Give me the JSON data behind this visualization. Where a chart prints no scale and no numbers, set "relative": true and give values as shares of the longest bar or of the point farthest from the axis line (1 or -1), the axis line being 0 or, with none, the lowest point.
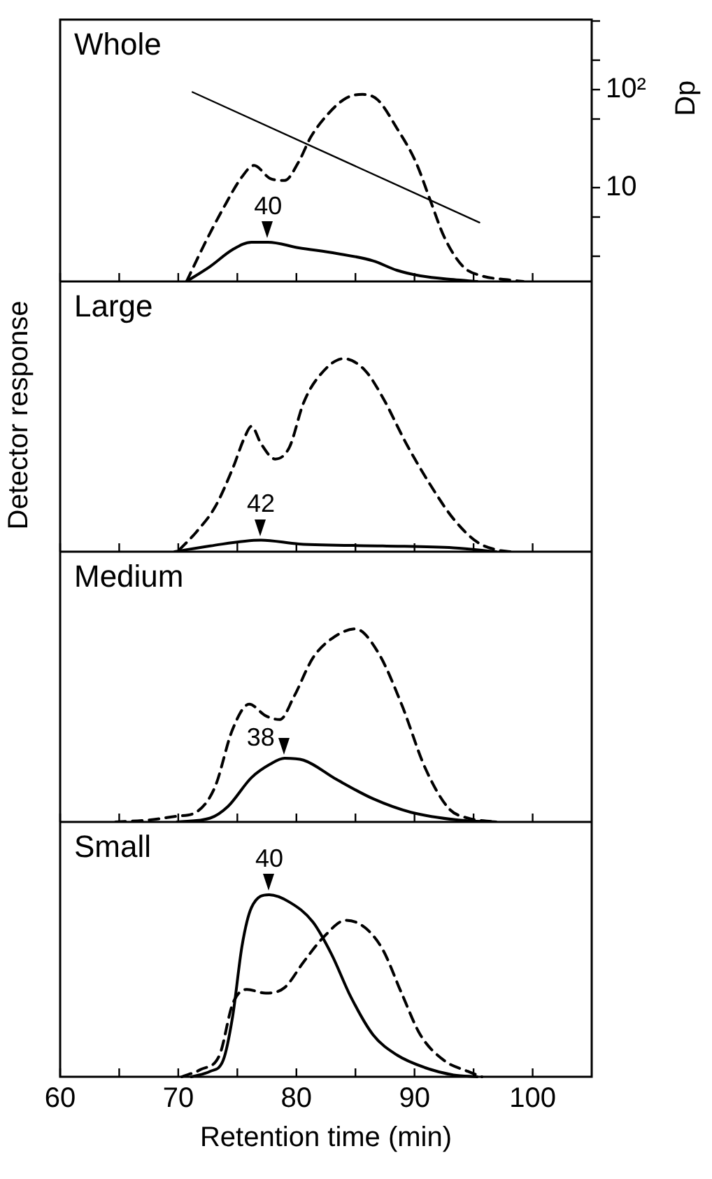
{
  "chart_data": [
    {
      "type": "line",
      "title": "Whole",
      "relative": true,
      "tick_labels": false,
      "xlim": [
        60,
        105
      ],
      "xticks": [
        60,
        {
          "value": 65,
          "label": null
        },
        70,
        {
          "value": 75,
          "label": null
        },
        80,
        {
          "value": 85,
          "label": null
        },
        90,
        {
          "value": 95,
          "label": null
        },
        100
      ],
      "annotations": [
        {
          "text": "40",
          "x": 77.6,
          "y": 0.21
        }
      ],
      "series": [
        {
          "color": "#000000",
          "line_style": "dashed",
          "x": [
            70.7,
            72.3,
            73.8,
            75.4,
            76.4,
            77.8,
            79.0,
            80.2,
            81.2,
            82.6,
            84.2,
            85.6,
            86.9,
            88.5,
            90.1,
            91.3,
            92.5,
            94.1,
            95.7,
            97.7,
            99.2
          ],
          "values": [
            0,
            0.21,
            0.39,
            0.56,
            0.62,
            0.55,
            0.54,
            0.64,
            0.77,
            0.89,
            0.98,
            1,
            0.97,
            0.82,
            0.64,
            0.44,
            0.24,
            0.08,
            0.03,
            0.01,
            0
          ]
        },
        {
          "color": "#000000",
          "line_style": "solid",
          "x": [
            70.7,
            72.7,
            74.6,
            76.2,
            77.6,
            80.2,
            83.4,
            86.5,
            88.5,
            90.5,
            93.3,
            95.3
          ],
          "values": [
            0,
            0.08,
            0.17,
            0.21,
            0.21,
            0.18,
            0.15,
            0.11,
            0.06,
            0.03,
            0.01,
            0
          ]
        }
      ]
    },
    {
      "type": "line",
      "ylabel": "Dp",
      "log": true,
      "tick_labels": "y",
      "xlim": [
        60,
        105
      ],
      "ylim": [
        1.1,
        520
      ],
      "yticks": [
        {
          "value": 2,
          "label": null
        },
        {
          "value": 5,
          "label": null
        },
        10,
        {
          "value": 50,
          "label": null
        },
        {
          "value": 100,
          "label": "10²"
        },
        {
          "value": 200,
          "label": null
        },
        {
          "value": 500,
          "label": null
        }
      ],
      "series": [
        {
          "color": "#000000",
          "line_style": "solid",
          "x": [
            71.2,
            95.5
          ],
          "values": [
            94.6,
            4.4
          ]
        }
      ]
    },
    {
      "type": "line",
      "title": "Large",
      "ylabel": "Detector response",
      "relative": true,
      "tick_labels": false,
      "xlim": [
        60,
        105
      ],
      "xticks": [
        60,
        {
          "value": 65,
          "label": null
        },
        70,
        {
          "value": 75,
          "label": null
        },
        80,
        {
          "value": 85,
          "label": null
        },
        90,
        {
          "value": 95,
          "label": null
        },
        100
      ],
      "annotations": [
        {
          "text": "42",
          "x": 77.0,
          "y": 0.06
        }
      ],
      "series": [
        {
          "color": "#000000",
          "line_style": "dashed",
          "x": [
            70.1,
            71.5,
            73.1,
            74.6,
            75.6,
            76.2,
            77.0,
            78.2,
            79.4,
            80.6,
            81.8,
            84.0,
            85.8,
            87.3,
            89.3,
            91.3,
            93.3,
            95.3,
            96.9,
            98.1
          ],
          "values": [
            0.01,
            0.1,
            0.23,
            0.43,
            0.59,
            0.65,
            0.56,
            0.48,
            0.54,
            0.77,
            0.9,
            1,
            0.94,
            0.8,
            0.56,
            0.35,
            0.17,
            0.05,
            0.01,
            0
          ]
        },
        {
          "color": "#000000",
          "line_style": "solid",
          "x": [
            69.7,
            72.7,
            77.0,
            80.2,
            87.3,
            93.3,
            96.9
          ],
          "values": [
            0,
            0.03,
            0.06,
            0.04,
            0.03,
            0.02,
            0
          ]
        }
      ]
    },
    {
      "type": "line",
      "title": "Medium",
      "relative": true,
      "tick_labels": false,
      "xlim": [
        60,
        105
      ],
      "xticks": [
        60,
        {
          "value": 65,
          "label": null
        },
        70,
        {
          "value": 75,
          "label": null
        },
        80,
        {
          "value": 85,
          "label": null
        },
        90,
        {
          "value": 95,
          "label": null
        },
        100
      ],
      "annotations": [
        {
          "text": "38",
          "x": 79.0,
          "y": 0.33
        }
      ],
      "series": [
        {
          "color": "#000000",
          "line_style": "dashed",
          "x": [
            64.7,
            67.5,
            69.9,
            71.5,
            73.1,
            74.6,
            76.0,
            77.4,
            78.6,
            79.8,
            81.4,
            83.0,
            85.0,
            86.9,
            88.9,
            90.9,
            92.9,
            94.5,
            96.9
          ],
          "values": [
            0,
            0.01,
            0.03,
            0.05,
            0.18,
            0.48,
            0.61,
            0.55,
            0.53,
            0.65,
            0.85,
            0.95,
            1,
            0.88,
            0.61,
            0.28,
            0.07,
            0.02,
            0
          ]
        },
        {
          "color": "#000000",
          "line_style": "solid",
          "x": [
            69.9,
            72.7,
            74.2,
            76.2,
            77.8,
            79.0,
            80.6,
            83.4,
            86.5,
            89.7,
            93.7,
            96.9
          ],
          "values": [
            0,
            0.02,
            0.08,
            0.23,
            0.3,
            0.33,
            0.32,
            0.22,
            0.12,
            0.05,
            0.01,
            0
          ]
        }
      ]
    },
    {
      "type": "line",
      "title": "Small",
      "xlabel": "Retention time (min)",
      "relative": true,
      "xlim": [
        60,
        105
      ],
      "xticks": [
        60,
        {
          "value": 65,
          "label": null
        },
        70,
        {
          "value": 75,
          "label": null
        },
        80,
        {
          "value": 85,
          "label": null
        },
        90,
        {
          "value": 95,
          "label": null
        },
        100
      ],
      "annotations": [
        {
          "text": "40",
          "x": 77.7,
          "y": 1
        }
      ],
      "series": [
        {
          "color": "#000000",
          "line_style": "dashed",
          "x": [
            70.3,
            71.9,
            73.5,
            74.6,
            75.8,
            77.4,
            79.0,
            80.6,
            82.2,
            84.2,
            85.8,
            87.3,
            88.9,
            90.5,
            92.5,
            94.5,
            95.7
          ],
          "values": [
            0,
            0.04,
            0.12,
            0.4,
            0.48,
            0.46,
            0.49,
            0.63,
            0.76,
            0.86,
            0.82,
            0.7,
            0.46,
            0.23,
            0.09,
            0.03,
            0
          ]
        },
        {
          "color": "#000000",
          "line_style": "solid",
          "x": [
            71.1,
            72.7,
            73.8,
            74.6,
            75.4,
            76.2,
            77.7,
            79.4,
            81.4,
            83.0,
            84.6,
            86.5,
            88.5,
            90.9,
            93.3,
            95.3
          ],
          "values": [
            0,
            0.03,
            0.09,
            0.33,
            0.72,
            0.93,
            1,
            0.96,
            0.85,
            0.67,
            0.44,
            0.23,
            0.12,
            0.05,
            0.01,
            0
          ]
        }
      ]
    }
  ]
}
